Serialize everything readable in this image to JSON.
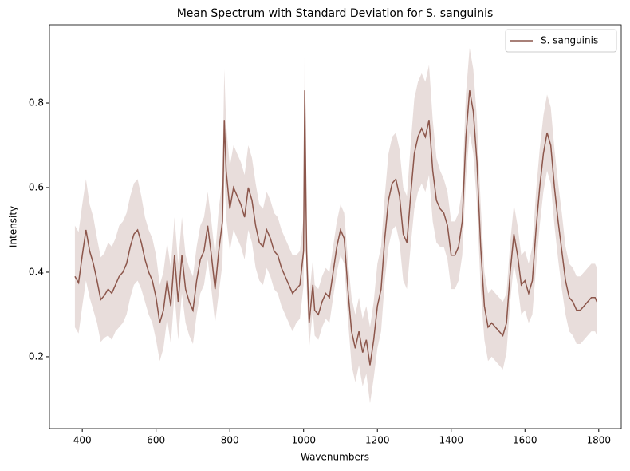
{
  "chart_data": {
    "type": "line",
    "title": "Mean Spectrum with Standard Deviation for S. sanguinis",
    "xlabel": "Wavenumbers",
    "ylabel": "Intensity",
    "xlim": [
      311,
      1861
    ],
    "ylim": [
      0.03,
      0.985
    ],
    "xticks": [
      400,
      600,
      800,
      1000,
      1200,
      1400,
      1600,
      1800
    ],
    "yticks": [
      0.2,
      0.4,
      0.6,
      0.8
    ],
    "grid": false,
    "legend": "upper right",
    "band_opacity": 0.2,
    "x": [
      380,
      390,
      400,
      410,
      420,
      430,
      440,
      450,
      460,
      470,
      480,
      490,
      500,
      510,
      520,
      530,
      540,
      550,
      560,
      570,
      580,
      590,
      600,
      610,
      620,
      630,
      640,
      650,
      660,
      670,
      680,
      690,
      700,
      710,
      720,
      730,
      740,
      750,
      760,
      770,
      780,
      785,
      790,
      800,
      810,
      820,
      830,
      840,
      850,
      860,
      870,
      880,
      890,
      900,
      910,
      920,
      930,
      940,
      950,
      960,
      970,
      980,
      990,
      1000,
      1003,
      1008,
      1015,
      1025,
      1030,
      1040,
      1050,
      1060,
      1070,
      1080,
      1090,
      1100,
      1110,
      1120,
      1130,
      1140,
      1150,
      1160,
      1170,
      1180,
      1190,
      1200,
      1210,
      1220,
      1230,
      1240,
      1250,
      1260,
      1270,
      1280,
      1290,
      1300,
      1310,
      1320,
      1330,
      1340,
      1350,
      1360,
      1370,
      1380,
      1390,
      1400,
      1410,
      1420,
      1430,
      1440,
      1450,
      1460,
      1470,
      1480,
      1490,
      1500,
      1510,
      1520,
      1530,
      1540,
      1550,
      1560,
      1570,
      1580,
      1590,
      1600,
      1610,
      1620,
      1630,
      1640,
      1650,
      1660,
      1670,
      1680,
      1690,
      1700,
      1710,
      1720,
      1730,
      1740,
      1750,
      1760,
      1770,
      1780,
      1790,
      1795
    ],
    "series": [
      {
        "name": "S. sanguinis",
        "color": "#8c564b",
        "values": [
          0.39,
          0.375,
          0.44,
          0.5,
          0.45,
          0.42,
          0.38,
          0.335,
          0.345,
          0.36,
          0.35,
          0.37,
          0.39,
          0.4,
          0.42,
          0.46,
          0.49,
          0.5,
          0.47,
          0.43,
          0.4,
          0.38,
          0.34,
          0.28,
          0.31,
          0.38,
          0.32,
          0.44,
          0.33,
          0.44,
          0.36,
          0.33,
          0.31,
          0.38,
          0.43,
          0.45,
          0.51,
          0.44,
          0.36,
          0.45,
          0.52,
          0.76,
          0.64,
          0.55,
          0.6,
          0.58,
          0.56,
          0.53,
          0.6,
          0.57,
          0.51,
          0.47,
          0.46,
          0.5,
          0.48,
          0.45,
          0.44,
          0.41,
          0.39,
          0.37,
          0.35,
          0.36,
          0.37,
          0.45,
          0.83,
          0.45,
          0.28,
          0.37,
          0.31,
          0.3,
          0.33,
          0.35,
          0.34,
          0.4,
          0.46,
          0.5,
          0.48,
          0.36,
          0.26,
          0.22,
          0.26,
          0.21,
          0.24,
          0.18,
          0.24,
          0.32,
          0.36,
          0.48,
          0.57,
          0.61,
          0.62,
          0.58,
          0.49,
          0.47,
          0.58,
          0.68,
          0.72,
          0.74,
          0.72,
          0.76,
          0.64,
          0.57,
          0.55,
          0.54,
          0.51,
          0.44,
          0.44,
          0.46,
          0.52,
          0.72,
          0.83,
          0.78,
          0.66,
          0.46,
          0.32,
          0.27,
          0.28,
          0.27,
          0.26,
          0.25,
          0.28,
          0.4,
          0.49,
          0.44,
          0.37,
          0.38,
          0.35,
          0.38,
          0.5,
          0.6,
          0.68,
          0.73,
          0.7,
          0.6,
          0.52,
          0.45,
          0.38,
          0.34,
          0.33,
          0.31,
          0.31,
          0.32,
          0.33,
          0.34,
          0.34,
          0.33
        ],
        "std": [
          0.12,
          0.12,
          0.12,
          0.12,
          0.11,
          0.11,
          0.1,
          0.1,
          0.1,
          0.11,
          0.11,
          0.11,
          0.12,
          0.12,
          0.12,
          0.12,
          0.12,
          0.12,
          0.11,
          0.1,
          0.1,
          0.1,
          0.1,
          0.09,
          0.09,
          0.09,
          0.09,
          0.09,
          0.09,
          0.09,
          0.08,
          0.08,
          0.08,
          0.08,
          0.08,
          0.08,
          0.08,
          0.08,
          0.08,
          0.1,
          0.1,
          0.12,
          0.11,
          0.1,
          0.1,
          0.1,
          0.1,
          0.1,
          0.1,
          0.1,
          0.1,
          0.09,
          0.09,
          0.09,
          0.09,
          0.09,
          0.09,
          0.09,
          0.09,
          0.09,
          0.09,
          0.08,
          0.08,
          0.08,
          0.11,
          0.08,
          0.06,
          0.06,
          0.06,
          0.06,
          0.06,
          0.06,
          0.06,
          0.06,
          0.06,
          0.06,
          0.06,
          0.07,
          0.08,
          0.08,
          0.08,
          0.08,
          0.08,
          0.09,
          0.09,
          0.1,
          0.1,
          0.1,
          0.11,
          0.11,
          0.11,
          0.11,
          0.11,
          0.11,
          0.12,
          0.13,
          0.13,
          0.13,
          0.13,
          0.13,
          0.12,
          0.1,
          0.09,
          0.08,
          0.08,
          0.08,
          0.08,
          0.08,
          0.08,
          0.1,
          0.1,
          0.1,
          0.1,
          0.1,
          0.08,
          0.08,
          0.08,
          0.08,
          0.08,
          0.08,
          0.07,
          0.07,
          0.07,
          0.07,
          0.07,
          0.07,
          0.07,
          0.08,
          0.09,
          0.09,
          0.09,
          0.09,
          0.09,
          0.09,
          0.09,
          0.09,
          0.08,
          0.08,
          0.08,
          0.08,
          0.08,
          0.08,
          0.08,
          0.08,
          0.08,
          0.08
        ]
      }
    ]
  }
}
